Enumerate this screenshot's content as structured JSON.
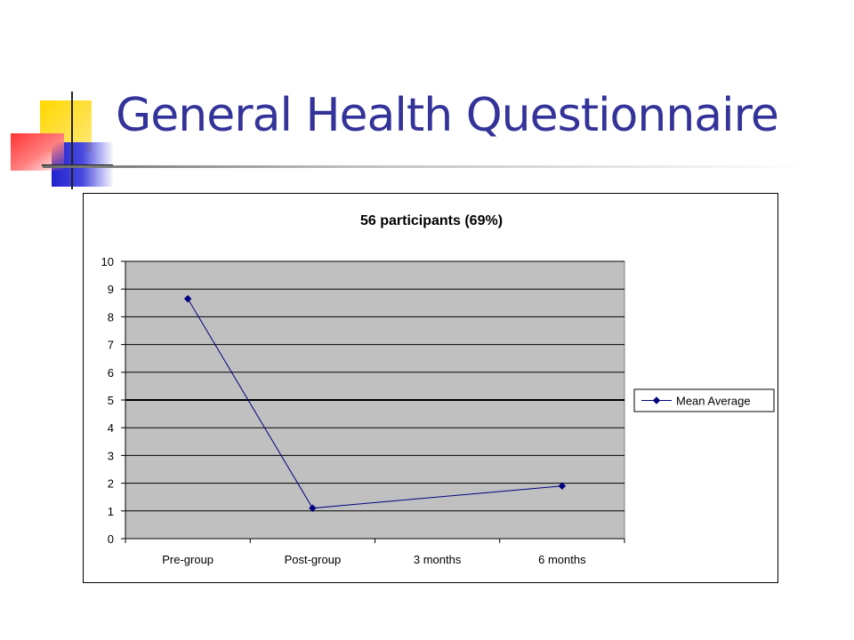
{
  "slide": {
    "title": "General Health Questionnaire"
  },
  "colors": {
    "title": "#333399",
    "plot_area": "#c0c0c0",
    "series": "#000080"
  },
  "chart_data": {
    "type": "line",
    "title": "56 participants (69%)",
    "xlabel": "",
    "ylabel": "",
    "categories": [
      "Pre-group",
      "Post-group",
      "3 months",
      "6 months"
    ],
    "series": [
      {
        "name": "Mean Average",
        "values": [
          8.65,
          1.1,
          null,
          1.9
        ]
      }
    ],
    "ylim": [
      0,
      10
    ],
    "yticks": [
      0,
      1,
      2,
      3,
      4,
      5,
      6,
      7,
      8,
      9,
      10
    ],
    "grid": true,
    "reference_line": 5,
    "legend": "right",
    "marker": "diamond"
  }
}
